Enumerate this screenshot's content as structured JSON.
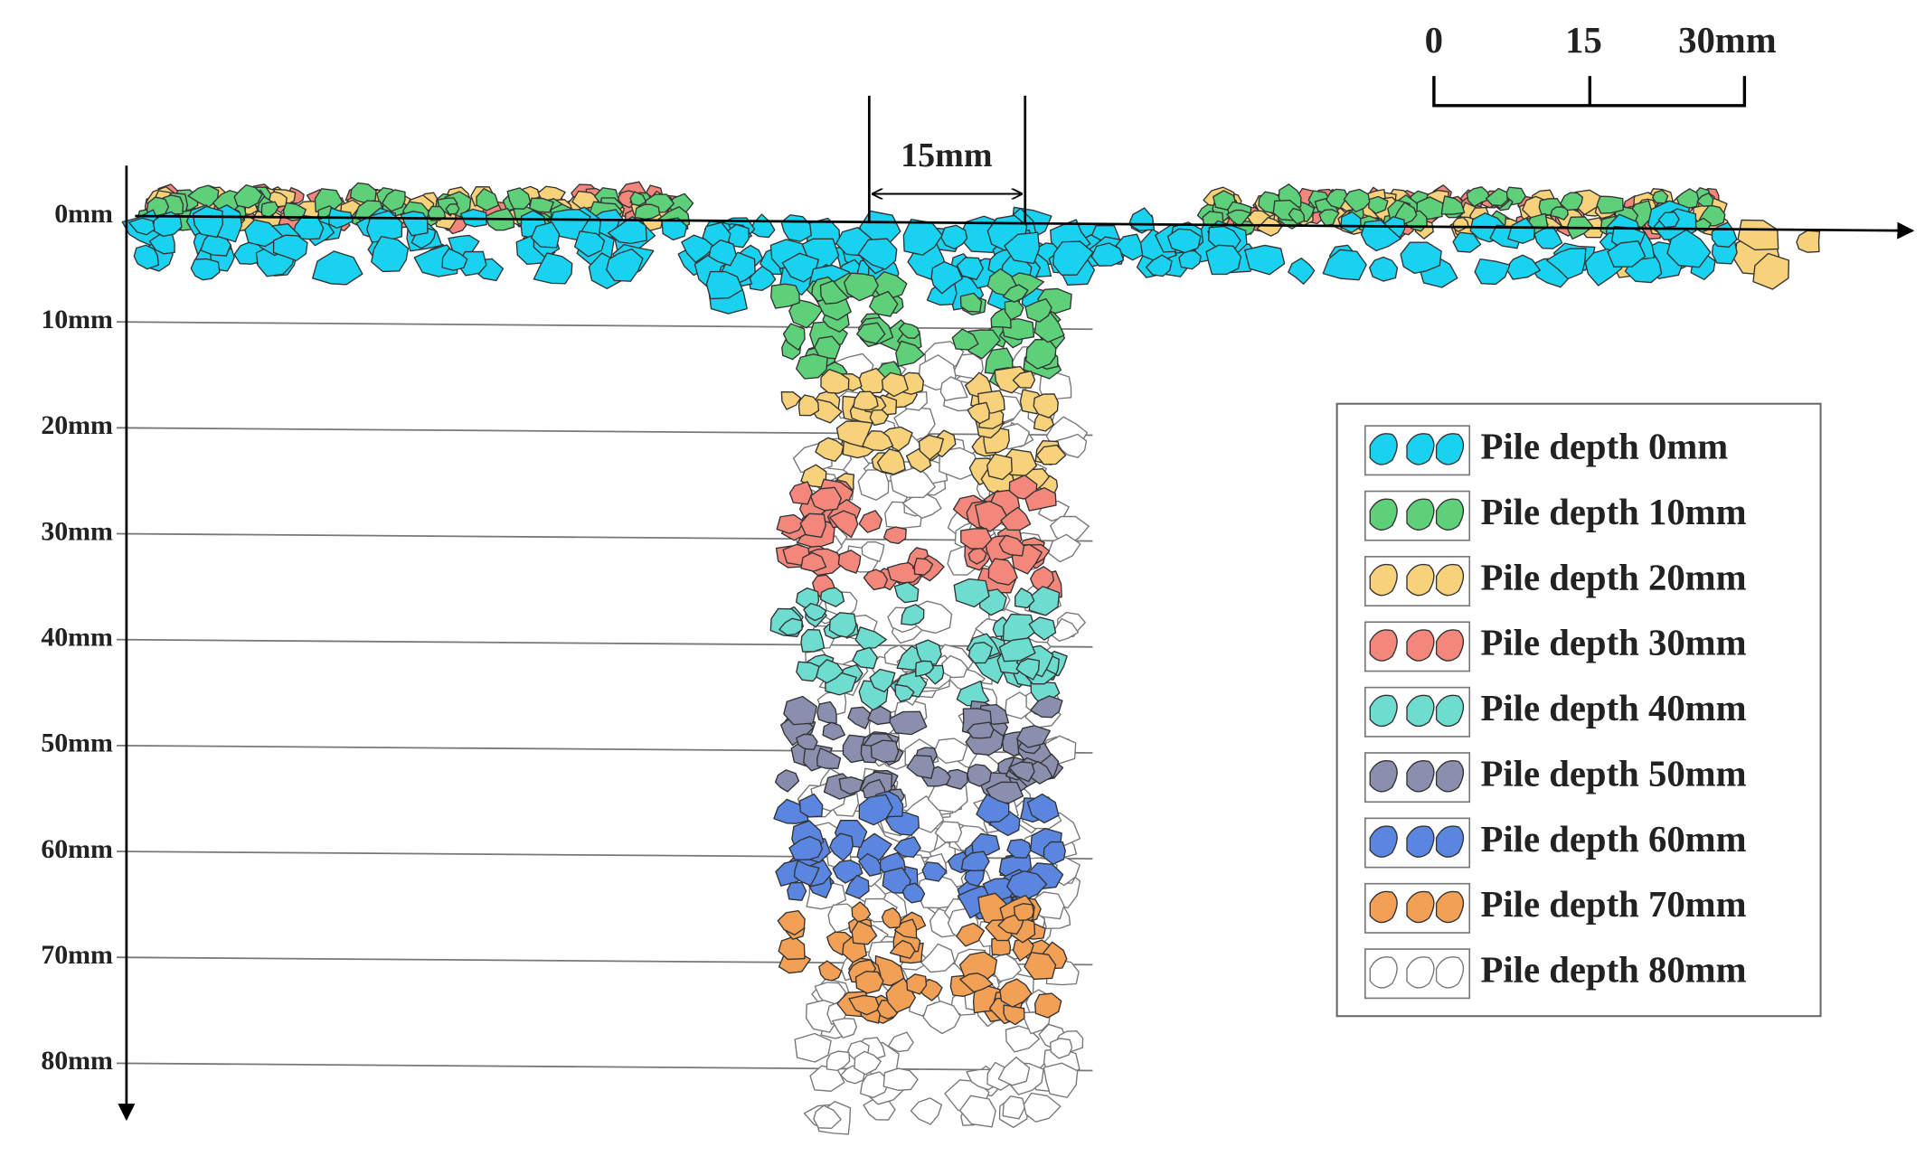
{
  "depth_labels": [
    "0mm",
    "10mm",
    "20mm",
    "30mm",
    "40mm",
    "50mm",
    "60mm",
    "70mm",
    "80mm"
  ],
  "width_label": "15mm",
  "scale_bar": {
    "labels": [
      "0",
      "15",
      "30mm"
    ]
  },
  "legend": [
    {
      "label": "Pile depth 0mm",
      "color": "#19d2f0"
    },
    {
      "label": "Pile depth 10mm",
      "color": "#5fd07a"
    },
    {
      "label": "Pile depth 20mm",
      "color": "#f8d27a"
    },
    {
      "label": "Pile depth 30mm",
      "color": "#f3877c"
    },
    {
      "label": "Pile depth 40mm",
      "color": "#6fdcd0"
    },
    {
      "label": "Pile depth 50mm",
      "color": "#8a8fae"
    },
    {
      "label": "Pile depth 60mm",
      "color": "#5a86e0"
    },
    {
      "label": "Pile depth 70mm",
      "color": "#f2a055"
    },
    {
      "label": "Pile depth 80mm",
      "color": "#ffffff"
    }
  ]
}
